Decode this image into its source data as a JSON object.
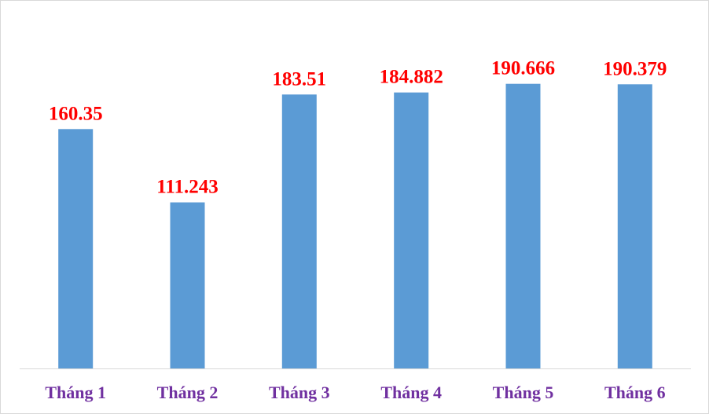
{
  "chart_data": {
    "type": "bar",
    "categories": [
      "Tháng 1",
      "Tháng 2",
      "Tháng 3",
      "Tháng 4",
      "Tháng 5",
      "Tháng 6"
    ],
    "values": [
      160.35,
      111.243,
      183.51,
      184.882,
      190.666,
      190.379
    ],
    "value_labels": [
      "160.35",
      "111.243",
      "183.51",
      "184.882",
      "190.666",
      "190.379"
    ],
    "ylim": [
      0,
      240
    ],
    "grid": false,
    "legend": "none",
    "title": "",
    "xlabel": "",
    "ylabel": ""
  },
  "colors": {
    "bar": "#5b9bd5",
    "data_label": "#ff0000",
    "tick_label": "#7030a0",
    "axis_line": "#d9d9d9"
  }
}
